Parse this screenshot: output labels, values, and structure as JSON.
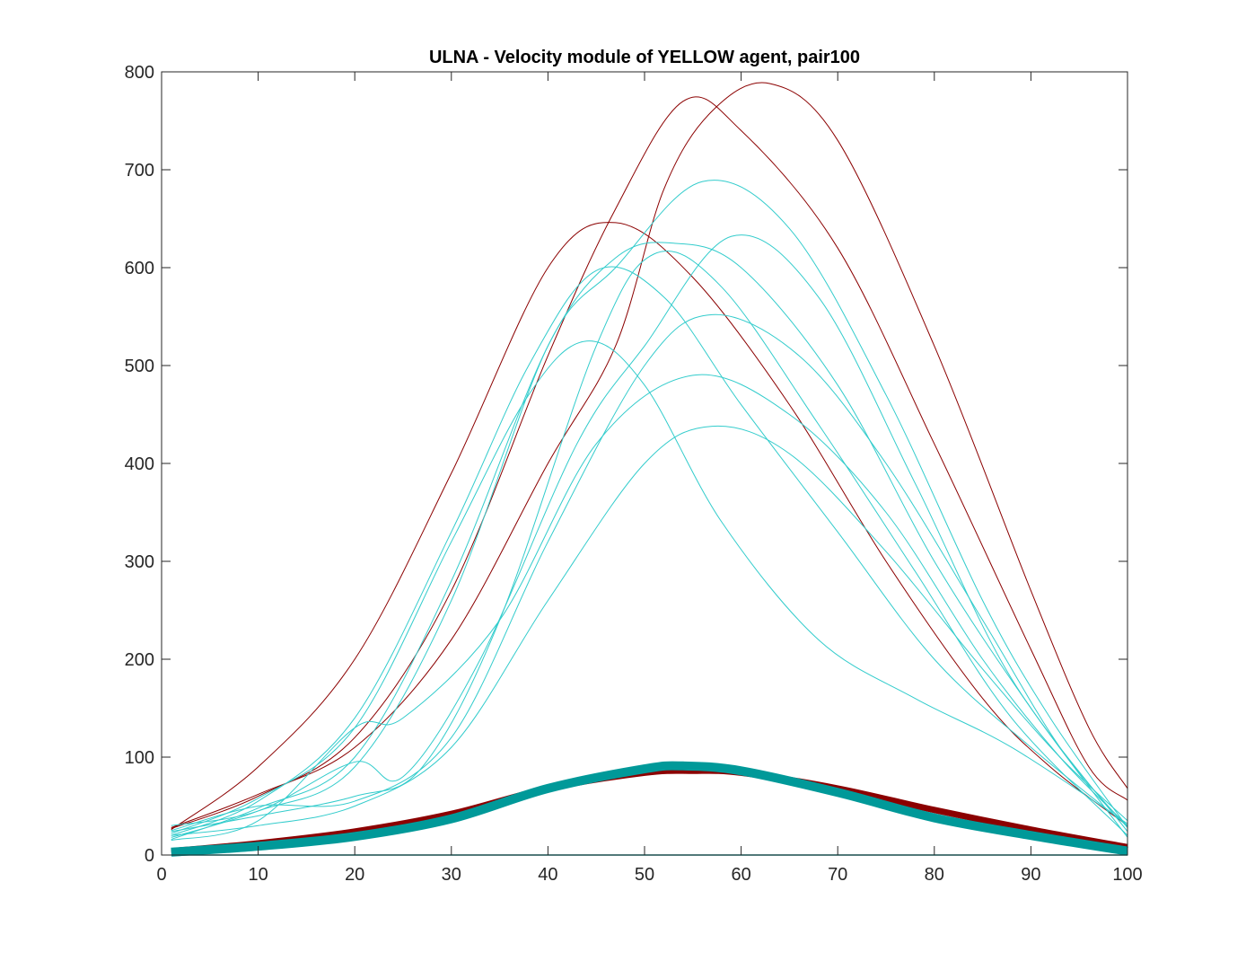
{
  "chart_data": {
    "type": "line",
    "title": "ULNA - Velocity module of YELLOW agent, pair100",
    "xlabel": "",
    "ylabel": "",
    "xlim": [
      0,
      100
    ],
    "ylim": [
      0,
      800
    ],
    "xticks": [
      0,
      10,
      20,
      30,
      40,
      50,
      60,
      70,
      80,
      90,
      100
    ],
    "yticks": [
      0,
      100,
      200,
      300,
      400,
      500,
      600,
      700,
      800
    ],
    "grid": false,
    "legend": "none",
    "colors": {
      "red": "#8b0000",
      "cyan": "#33cccc",
      "teal": "#009999"
    },
    "series": [
      {
        "color": "red",
        "width": 1,
        "points": [
          [
            1,
            28
          ],
          [
            10,
            62
          ],
          [
            20,
            110
          ],
          [
            30,
            220
          ],
          [
            40,
            400
          ],
          [
            47,
            520
          ],
          [
            52,
            680
          ],
          [
            57,
            760
          ],
          [
            63,
            788
          ],
          [
            70,
            730
          ],
          [
            80,
            520
          ],
          [
            90,
            270
          ],
          [
            96,
            130
          ],
          [
            100,
            68
          ]
        ]
      },
      {
        "color": "red",
        "width": 1,
        "points": [
          [
            1,
            27
          ],
          [
            10,
            60
          ],
          [
            20,
            120
          ],
          [
            30,
            270
          ],
          [
            40,
            510
          ],
          [
            47,
            660
          ],
          [
            54,
            770
          ],
          [
            60,
            740
          ],
          [
            70,
            620
          ],
          [
            80,
            420
          ],
          [
            90,
            210
          ],
          [
            96,
            90
          ],
          [
            100,
            56
          ]
        ]
      },
      {
        "color": "red",
        "width": 1,
        "points": [
          [
            1,
            26
          ],
          [
            10,
            90
          ],
          [
            20,
            200
          ],
          [
            30,
            390
          ],
          [
            40,
            600
          ],
          [
            47,
            646
          ],
          [
            55,
            590
          ],
          [
            65,
            460
          ],
          [
            75,
            300
          ],
          [
            85,
            160
          ],
          [
            92,
            90
          ],
          [
            100,
            30
          ]
        ]
      },
      {
        "color": "cyan",
        "width": 1,
        "points": [
          [
            1,
            18
          ],
          [
            10,
            45
          ],
          [
            20,
            90
          ],
          [
            30,
            260
          ],
          [
            40,
            520
          ],
          [
            47,
            600
          ],
          [
            56,
            688
          ],
          [
            65,
            640
          ],
          [
            75,
            470
          ],
          [
            85,
            260
          ],
          [
            92,
            140
          ],
          [
            100,
            28
          ]
        ]
      },
      {
        "color": "cyan",
        "width": 1,
        "points": [
          [
            1,
            16
          ],
          [
            10,
            48
          ],
          [
            20,
            100
          ],
          [
            30,
            280
          ],
          [
            40,
            520
          ],
          [
            47,
            610
          ],
          [
            53,
            625
          ],
          [
            60,
            600
          ],
          [
            70,
            480
          ],
          [
            80,
            300
          ],
          [
            90,
            150
          ],
          [
            100,
            18
          ]
        ]
      },
      {
        "color": "cyan",
        "width": 1,
        "points": [
          [
            1,
            20
          ],
          [
            10,
            55
          ],
          [
            20,
            140
          ],
          [
            30,
            330
          ],
          [
            38,
            500
          ],
          [
            45,
            597
          ],
          [
            52,
            570
          ],
          [
            60,
            460
          ],
          [
            70,
            330
          ],
          [
            80,
            200
          ],
          [
            90,
            110
          ],
          [
            100,
            30
          ]
        ]
      },
      {
        "color": "cyan",
        "width": 1,
        "points": [
          [
            1,
            22
          ],
          [
            10,
            58
          ],
          [
            20,
            130
          ],
          [
            30,
            320
          ],
          [
            38,
            470
          ],
          [
            44,
            525
          ],
          [
            50,
            480
          ],
          [
            58,
            340
          ],
          [
            68,
            220
          ],
          [
            78,
            160
          ],
          [
            88,
            110
          ],
          [
            100,
            32
          ]
        ]
      },
      {
        "color": "cyan",
        "width": 1,
        "points": [
          [
            1,
            24
          ],
          [
            10,
            40
          ],
          [
            20,
            60
          ],
          [
            27,
            90
          ],
          [
            35,
            240
          ],
          [
            45,
            520
          ],
          [
            51,
            614
          ],
          [
            58,
            580
          ],
          [
            68,
            440
          ],
          [
            78,
            290
          ],
          [
            88,
            140
          ],
          [
            100,
            20
          ]
        ]
      },
      {
        "color": "cyan",
        "width": 1,
        "points": [
          [
            1,
            30
          ],
          [
            10,
            45
          ],
          [
            20,
            95
          ],
          [
            25,
            80
          ],
          [
            33,
            200
          ],
          [
            43,
            420
          ],
          [
            50,
            520
          ],
          [
            59,
            632
          ],
          [
            68,
            570
          ],
          [
            78,
            380
          ],
          [
            88,
            180
          ],
          [
            100,
            24
          ]
        ]
      },
      {
        "color": "cyan",
        "width": 1,
        "points": [
          [
            1,
            25
          ],
          [
            10,
            50
          ],
          [
            20,
            55
          ],
          [
            30,
            120
          ],
          [
            40,
            320
          ],
          [
            50,
            500
          ],
          [
            57,
            552
          ],
          [
            66,
            510
          ],
          [
            75,
            400
          ],
          [
            85,
            240
          ],
          [
            93,
            110
          ],
          [
            100,
            28
          ]
        ]
      },
      {
        "color": "cyan",
        "width": 1,
        "points": [
          [
            1,
            15
          ],
          [
            10,
            35
          ],
          [
            20,
            130
          ],
          [
            25,
            140
          ],
          [
            35,
            240
          ],
          [
            45,
            420
          ],
          [
            55,
            490
          ],
          [
            65,
            450
          ],
          [
            75,
            350
          ],
          [
            85,
            200
          ],
          [
            93,
            100
          ],
          [
            100,
            30
          ]
        ]
      },
      {
        "color": "cyan",
        "width": 1,
        "points": [
          [
            1,
            20
          ],
          [
            10,
            30
          ],
          [
            20,
            50
          ],
          [
            30,
            110
          ],
          [
            40,
            260
          ],
          [
            50,
            400
          ],
          [
            57,
            438
          ],
          [
            65,
            410
          ],
          [
            75,
            310
          ],
          [
            85,
            190
          ],
          [
            93,
            100
          ],
          [
            100,
            35
          ]
        ]
      },
      {
        "color": "red",
        "width": 7,
        "points": [
          [
            1,
            4
          ],
          [
            10,
            12
          ],
          [
            20,
            24
          ],
          [
            30,
            42
          ],
          [
            40,
            68
          ],
          [
            50,
            84
          ],
          [
            55,
            86
          ],
          [
            60,
            84
          ],
          [
            70,
            68
          ],
          [
            80,
            46
          ],
          [
            90,
            26
          ],
          [
            100,
            8
          ]
        ]
      },
      {
        "color": "teal",
        "width": 10,
        "points": [
          [
            1,
            3
          ],
          [
            10,
            9
          ],
          [
            20,
            19
          ],
          [
            30,
            37
          ],
          [
            40,
            68
          ],
          [
            50,
            88
          ],
          [
            54,
            91
          ],
          [
            60,
            86
          ],
          [
            70,
            64
          ],
          [
            80,
            38
          ],
          [
            90,
            20
          ],
          [
            100,
            4
          ]
        ]
      },
      {
        "color": "teal",
        "width": 1.5,
        "points": [
          [
            1,
            0
          ],
          [
            100,
            0
          ]
        ]
      }
    ]
  }
}
